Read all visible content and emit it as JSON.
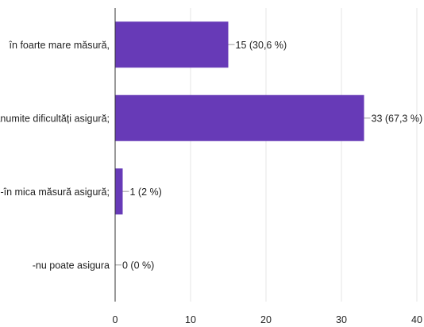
{
  "chart_data": {
    "type": "bar",
    "orientation": "horizontal",
    "categories": [
      "în foarte mare măsură,",
      "cu anumite dificultăți asigură;",
      "-în mica măsură asigură;",
      "-nu poate asigura"
    ],
    "values": [
      15,
      33,
      1,
      0
    ],
    "value_labels": [
      "15 (30,6 %)",
      "33 (67,3 %)",
      "1 (2 %)",
      "0 (0 %)"
    ],
    "xlim": [
      0,
      40
    ],
    "xticks": [
      "0",
      "10",
      "20",
      "30",
      "40"
    ],
    "grid": true,
    "bar_color": "#673ab7"
  }
}
